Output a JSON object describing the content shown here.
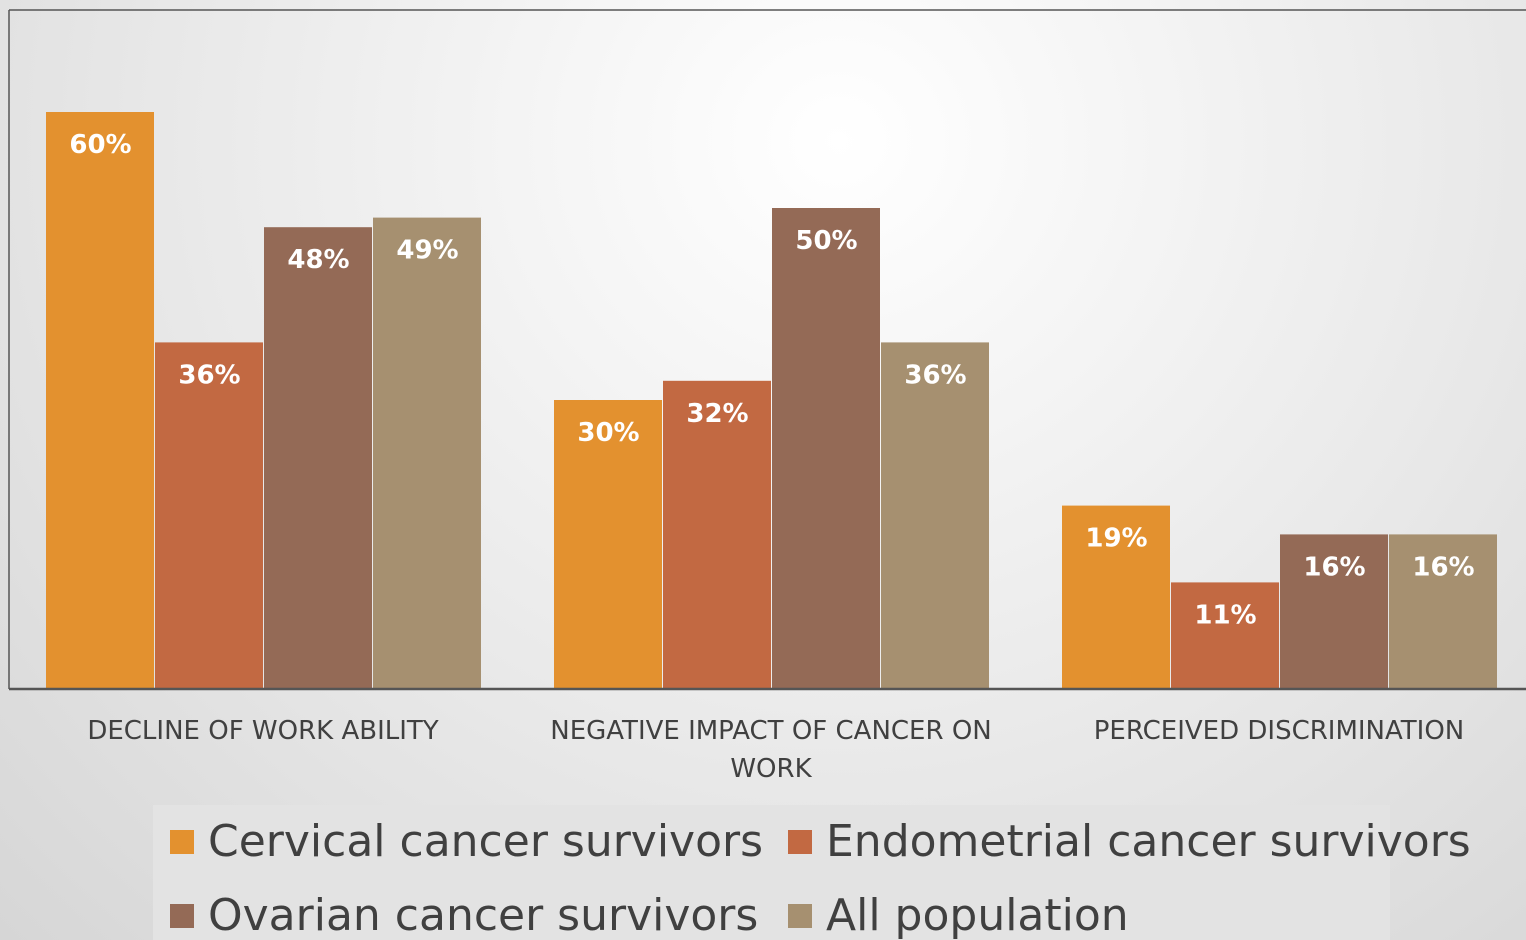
{
  "chart_data": {
    "type": "bar",
    "categories": [
      "DECLINE OF WORK ABILITY",
      "NEGATIVE IMPACT OF CANCER ON WORK",
      "PERCEIVED DISCRIMINATION"
    ],
    "series": [
      {
        "name": "Cervical cancer survivors",
        "color": "#E3912F",
        "values": [
          60,
          30,
          19
        ],
        "value_labels": [
          "60%",
          "30%",
          "19%"
        ]
      },
      {
        "name": "Endometrial cancer survivors",
        "color": "#C26942",
        "values": [
          36,
          32,
          11
        ],
        "value_labels": [
          "36%",
          "32%",
          "11%"
        ]
      },
      {
        "name": "Ovarian cancer survivors",
        "color": "#946A56",
        "values": [
          48,
          50,
          16
        ],
        "value_labels": [
          "48%",
          "50%",
          "16%"
        ]
      },
      {
        "name": "All population",
        "color": "#A69070",
        "values": [
          49,
          36,
          16
        ],
        "value_labels": [
          "49%",
          "36%",
          "16%"
        ]
      }
    ],
    "ylim": [
      0,
      70
    ]
  }
}
